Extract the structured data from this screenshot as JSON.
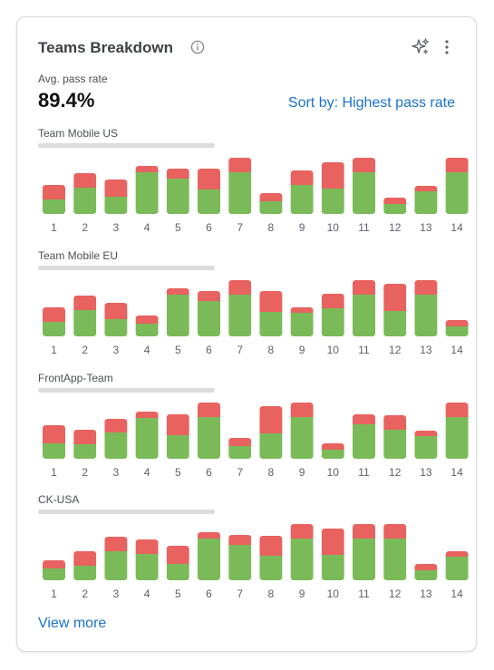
{
  "card": {
    "title": "Teams Breakdown",
    "metric_label": "Avg. pass rate",
    "metric_value": "89.4%",
    "sort_link": "Sort by: Highest pass rate",
    "view_more": "View more"
  },
  "icons": {
    "info": "info-icon",
    "sparkle": "sparkle-icon",
    "menu": "kebab-menu-icon"
  },
  "colors": {
    "pass": "#7aba58",
    "fail": "#e8625f",
    "link": "#1a73c9"
  },
  "chart_data": [
    {
      "type": "bar",
      "title": "Team Mobile US",
      "categories": [
        "1",
        "2",
        "3",
        "4",
        "5",
        "6",
        "7",
        "8",
        "9",
        "10",
        "11",
        "12",
        "13",
        "14"
      ],
      "series": [
        {
          "values": [
            16,
            29,
            19,
            46,
            39,
            27,
            46,
            14,
            32,
            28,
            46,
            11,
            25,
            46
          ]
        },
        {
          "values": [
            16,
            16,
            19,
            7,
            11,
            23,
            16,
            9,
            16,
            29,
            16,
            7,
            6,
            16
          ]
        }
      ],
      "ylim": [
        0,
        62
      ]
    },
    {
      "type": "bar",
      "title": "Team Mobile EU",
      "categories": [
        "1",
        "2",
        "3",
        "4",
        "5",
        "6",
        "7",
        "8",
        "9",
        "10",
        "11",
        "12",
        "13",
        "14"
      ],
      "series": [
        {
          "values": [
            16,
            29,
            19,
            14,
            46,
            39,
            46,
            27,
            26,
            31,
            46,
            28,
            46,
            11
          ]
        },
        {
          "values": [
            16,
            16,
            18,
            9,
            7,
            11,
            16,
            23,
            6,
            16,
            16,
            30,
            16,
            7
          ]
        }
      ],
      "ylim": [
        0,
        62
      ]
    },
    {
      "type": "bar",
      "title": "FrontApp-Team",
      "categories": [
        "1",
        "2",
        "3",
        "4",
        "5",
        "6",
        "7",
        "8",
        "9",
        "10",
        "11",
        "12",
        "13",
        "14"
      ],
      "series": [
        {
          "values": [
            17,
            16,
            29,
            45,
            26,
            46,
            14,
            28,
            46,
            10,
            38,
            32,
            25,
            46
          ]
        },
        {
          "values": [
            20,
            16,
            15,
            7,
            23,
            16,
            9,
            30,
            16,
            7,
            11,
            16,
            6,
            16
          ]
        }
      ],
      "ylim": [
        0,
        62
      ]
    },
    {
      "type": "bar",
      "title": "CK-USA",
      "categories": [
        "1",
        "2",
        "3",
        "4",
        "5",
        "6",
        "7",
        "8",
        "9",
        "10",
        "11",
        "12",
        "13",
        "14"
      ],
      "series": [
        {
          "values": [
            13,
            16,
            32,
            29,
            18,
            46,
            39,
            27,
            46,
            28,
            46,
            46,
            11,
            26
          ]
        },
        {
          "values": [
            9,
            16,
            16,
            16,
            20,
            7,
            11,
            22,
            16,
            29,
            16,
            16,
            7,
            6
          ]
        }
      ],
      "ylim": [
        0,
        62
      ]
    }
  ]
}
